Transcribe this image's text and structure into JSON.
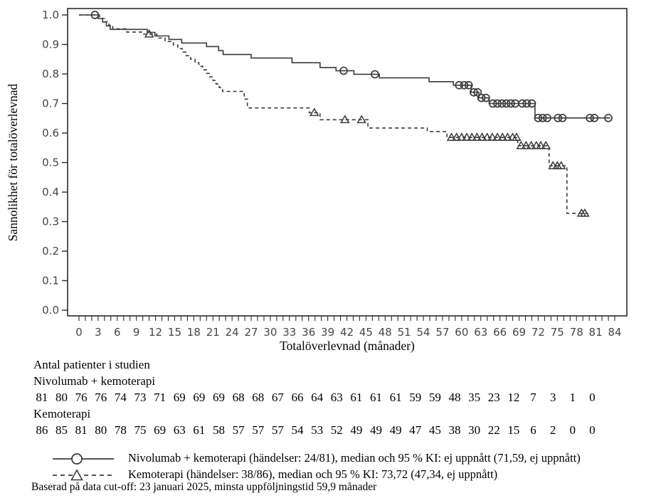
{
  "colors": {
    "axis": "#2b2b2b",
    "curve": "#3b3b3b",
    "tick_label": "#464646",
    "text": "#000000",
    "background": "#ffffff"
  },
  "chart_data": {
    "type": "line",
    "subtype": "kaplan-meier-step",
    "title": "",
    "xlabel": "Totalöverlevnad (månader)",
    "ylabel": "Sannolikhet för totalöverlevnad",
    "xlim": [
      0,
      84
    ],
    "ylim": [
      0.0,
      1.0
    ],
    "grid": false,
    "x_tick_labels": [
      "0",
      "3",
      "6",
      "9",
      "12",
      "15",
      "18",
      "21",
      "24",
      "27",
      "30",
      "33",
      "36",
      "39",
      "42",
      "45",
      "48",
      "51",
      "54",
      "57",
      "60",
      "63",
      "66",
      "69",
      "72",
      "75",
      "78",
      "81",
      "84"
    ],
    "x_minor_tick_every": 1,
    "y_tick_labels": [
      "0.0",
      "0.1",
      "0.2",
      "0.3",
      "0.4",
      "0.5",
      "0.6",
      "0.7",
      "0.8",
      "0.9",
      "1.0"
    ],
    "legend_position": "bottom",
    "series": [
      {
        "name": "Nivolumab + kemoterapi",
        "line": "solid",
        "marker": "circle",
        "events": "24/81",
        "median": "ej uppnått",
        "ci95": "(71,59, ej uppnått)",
        "steps": [
          [
            0,
            1.0
          ],
          [
            3.0,
            0.988
          ],
          [
            3.7,
            0.976
          ],
          [
            4.3,
            0.963
          ],
          [
            4.9,
            0.951
          ],
          [
            10.7,
            0.941
          ],
          [
            11.9,
            0.929
          ],
          [
            14.1,
            0.917
          ],
          [
            16.1,
            0.905
          ],
          [
            20.0,
            0.893
          ],
          [
            21.9,
            0.879
          ],
          [
            22.6,
            0.866
          ],
          [
            27.0,
            0.854
          ],
          [
            33.4,
            0.838
          ],
          [
            37.8,
            0.822
          ],
          [
            40.3,
            0.811
          ],
          [
            43.1,
            0.799
          ],
          [
            47.1,
            0.787
          ],
          [
            54.9,
            0.774
          ],
          [
            58.7,
            0.762
          ],
          [
            61.5,
            0.738
          ],
          [
            62.7,
            0.719
          ],
          [
            64.3,
            0.7
          ],
          [
            71.5,
            0.651
          ]
        ],
        "end_month": 83.3,
        "censor_marks": [
          [
            2.5,
            1.0
          ],
          [
            41.5,
            0.811
          ],
          [
            46.4,
            0.799
          ],
          [
            59.6,
            0.762
          ],
          [
            60.4,
            0.762
          ],
          [
            61.1,
            0.762
          ],
          [
            61.9,
            0.738
          ],
          [
            62.5,
            0.738
          ],
          [
            63.1,
            0.719
          ],
          [
            63.8,
            0.719
          ],
          [
            64.9,
            0.7
          ],
          [
            65.6,
            0.7
          ],
          [
            66.3,
            0.7
          ],
          [
            67.0,
            0.7
          ],
          [
            67.7,
            0.7
          ],
          [
            68.4,
            0.7
          ],
          [
            69.5,
            0.7
          ],
          [
            70.2,
            0.7
          ],
          [
            71.0,
            0.7
          ],
          [
            72.0,
            0.651
          ],
          [
            72.7,
            0.651
          ],
          [
            73.4,
            0.651
          ],
          [
            75.1,
            0.651
          ],
          [
            75.8,
            0.651
          ],
          [
            80.1,
            0.651
          ],
          [
            80.8,
            0.651
          ],
          [
            83.0,
            0.651
          ]
        ]
      },
      {
        "name": "Kemoterapi",
        "line": "dashed",
        "marker": "triangle",
        "events": "38/86",
        "median": "73,72",
        "ci95": "(47,34, ej uppnått)",
        "steps": [
          [
            0,
            1.0
          ],
          [
            3.2,
            0.988
          ],
          [
            4.0,
            0.977
          ],
          [
            4.7,
            0.965
          ],
          [
            5.3,
            0.953
          ],
          [
            7.5,
            0.942
          ],
          [
            9.8,
            0.935
          ],
          [
            12.2,
            0.922
          ],
          [
            13.5,
            0.91
          ],
          [
            14.8,
            0.898
          ],
          [
            15.5,
            0.886
          ],
          [
            16.2,
            0.874
          ],
          [
            16.8,
            0.862
          ],
          [
            17.5,
            0.85
          ],
          [
            18.2,
            0.838
          ],
          [
            18.8,
            0.826
          ],
          [
            19.4,
            0.814
          ],
          [
            20.0,
            0.802
          ],
          [
            20.5,
            0.79
          ],
          [
            21.0,
            0.778
          ],
          [
            21.5,
            0.766
          ],
          [
            22.0,
            0.754
          ],
          [
            22.5,
            0.741
          ],
          [
            25.9,
            0.715
          ],
          [
            26.4,
            0.685
          ],
          [
            36.1,
            0.669
          ],
          [
            37.8,
            0.645
          ],
          [
            45.3,
            0.617
          ],
          [
            54.6,
            0.605
          ],
          [
            57.7,
            0.585
          ],
          [
            68.8,
            0.557
          ],
          [
            73.7,
            0.489
          ],
          [
            76.5,
            0.328
          ]
        ],
        "end_month": 79.8,
        "censor_marks": [
          [
            11.0,
            0.935
          ],
          [
            36.9,
            0.669
          ],
          [
            41.7,
            0.645
          ],
          [
            44.3,
            0.645
          ],
          [
            58.4,
            0.585
          ],
          [
            59.2,
            0.585
          ],
          [
            60.0,
            0.585
          ],
          [
            60.8,
            0.585
          ],
          [
            61.6,
            0.585
          ],
          [
            62.4,
            0.585
          ],
          [
            63.2,
            0.585
          ],
          [
            64.0,
            0.585
          ],
          [
            64.8,
            0.585
          ],
          [
            65.6,
            0.585
          ],
          [
            66.4,
            0.585
          ],
          [
            67.2,
            0.585
          ],
          [
            68.0,
            0.585
          ],
          [
            68.6,
            0.585
          ],
          [
            69.3,
            0.557
          ],
          [
            70.1,
            0.557
          ],
          [
            70.9,
            0.557
          ],
          [
            71.7,
            0.557
          ],
          [
            72.4,
            0.557
          ],
          [
            73.2,
            0.557
          ],
          [
            74.3,
            0.489
          ],
          [
            75.0,
            0.489
          ],
          [
            75.6,
            0.489
          ],
          [
            78.8,
            0.328
          ],
          [
            79.3,
            0.328
          ]
        ]
      }
    ]
  },
  "at_risk": {
    "title": "Antal patienter i studien",
    "groups": [
      {
        "label": "Nivolumab + kemoterapi",
        "counts": [
          81,
          80,
          76,
          76,
          74,
          73,
          71,
          69,
          69,
          69,
          68,
          68,
          67,
          66,
          64,
          63,
          61,
          61,
          61,
          59,
          59,
          48,
          35,
          23,
          12,
          7,
          3,
          1,
          0
        ]
      },
      {
        "label": "Kemoterapi",
        "counts": [
          86,
          85,
          81,
          80,
          78,
          75,
          69,
          63,
          61,
          58,
          57,
          57,
          57,
          54,
          53,
          52,
          49,
          49,
          49,
          47,
          45,
          38,
          30,
          22,
          15,
          6,
          2,
          0,
          0
        ]
      }
    ]
  },
  "legend": {
    "entries": [
      {
        "symbol": "solid-line-circle",
        "text": "Nivolumab + kemoterapi (händelser: 24/81), median och 95 % KI: ej uppnått (71,59, ej uppnått)"
      },
      {
        "symbol": "dashed-line-triangle",
        "text": "Kemoterapi (händelser: 38/86), median och 95 % KI: 73,72 (47,34, ej uppnått)"
      }
    ]
  },
  "footer": "Baserad på data cut-off: 23 januari 2025, minsta uppföljningstid 59,9 månader"
}
